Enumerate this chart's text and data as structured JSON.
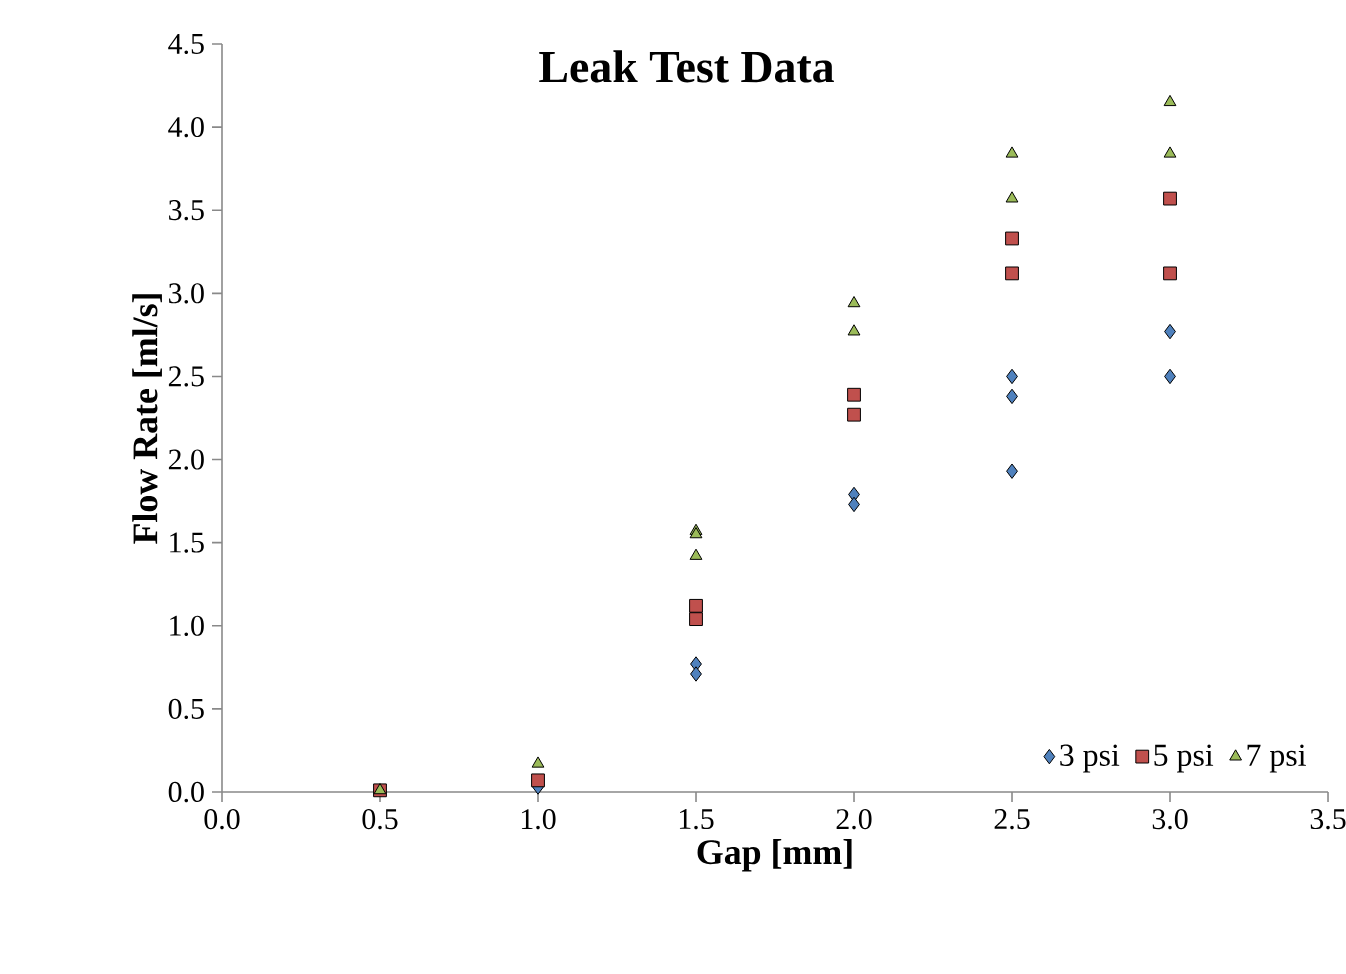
{
  "chart_data": {
    "type": "scatter",
    "title": "Leak Test Data",
    "xlabel": "Gap [mm]",
    "ylabel": "Flow Rate [ml/s]",
    "series": [
      {
        "name": "3 psi",
        "color": "#4f81bd",
        "marker": "diamond",
        "x": [
          1.0,
          1.5,
          1.5,
          2.0,
          2.0,
          2.5,
          2.5,
          2.5,
          3.0,
          3.0
        ],
        "values": [
          0.03,
          0.77,
          0.71,
          1.79,
          1.73,
          2.5,
          2.38,
          1.93,
          2.77,
          2.5
        ]
      },
      {
        "name": "5 psi",
        "color": "#c0504d",
        "marker": "square",
        "x": [
          0.5,
          1.0,
          1.5,
          1.5,
          2.0,
          2.0,
          2.5,
          2.5,
          3.0,
          3.0
        ],
        "values": [
          0.01,
          0.07,
          1.12,
          1.04,
          2.39,
          2.27,
          3.33,
          3.12,
          3.57,
          3.12
        ]
      },
      {
        "name": "7 psi",
        "color": "#9bbb59",
        "marker": "triangle",
        "x": [
          0.5,
          1.0,
          1.5,
          1.5,
          1.5,
          2.0,
          2.0,
          2.5,
          2.5,
          3.0,
          3.0
        ],
        "values": [
          0.01,
          0.17,
          1.57,
          1.55,
          1.42,
          2.94,
          2.77,
          3.84,
          3.57,
          4.15,
          3.84
        ]
      }
    ],
    "xlim": [
      0,
      3.5
    ],
    "ylim": [
      0,
      4.5
    ],
    "xticks": [
      {
        "value": 0,
        "label": "0.0"
      },
      0.5,
      {
        "value": 1,
        "label": "1.0"
      },
      1.5,
      {
        "value": 2,
        "label": "2.0"
      },
      2.5,
      {
        "value": 3,
        "label": "3.0"
      },
      3.5
    ],
    "yticks": [
      {
        "value": 0,
        "label": "0.0"
      },
      0.5,
      {
        "value": 1,
        "label": "1.0"
      },
      1.5,
      {
        "value": 2,
        "label": "2.0"
      },
      2.5,
      {
        "value": 3,
        "label": "3.0"
      },
      3.5,
      {
        "value": 4,
        "label": "4.0"
      },
      4.5
    ],
    "grid": false,
    "legend": "bottom right"
  }
}
